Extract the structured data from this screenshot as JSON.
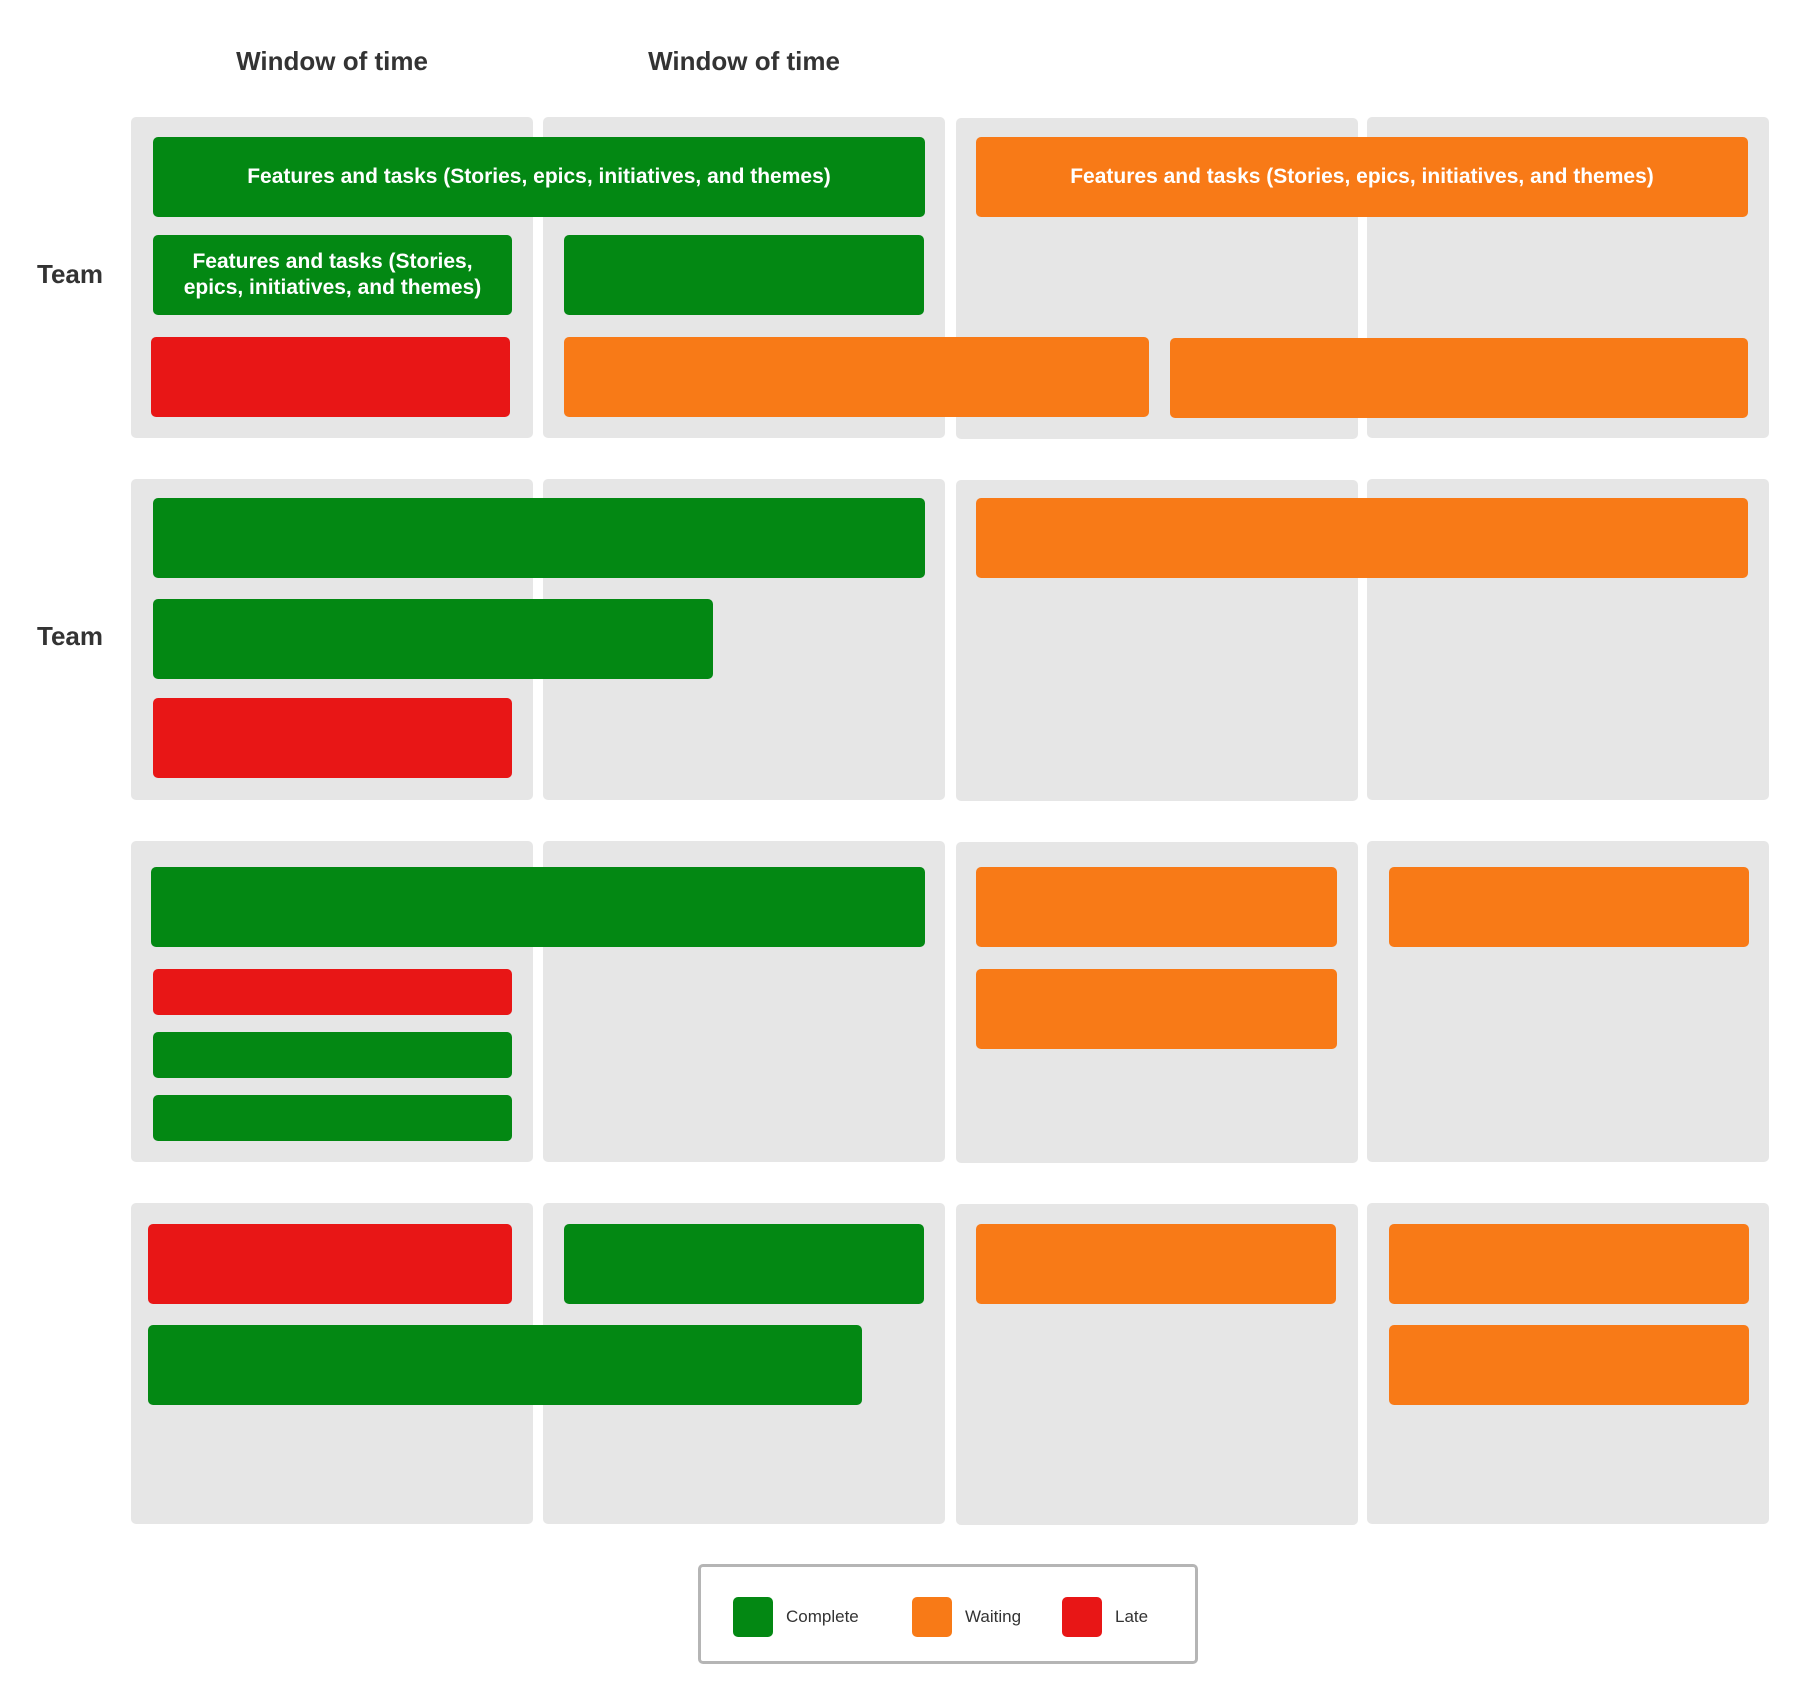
{
  "colors": {
    "complete": "#038813",
    "waiting": "#f87a17",
    "late": "#e81616",
    "cell_background": "#e6e6e6"
  },
  "headers": [
    "Window of time",
    "Window of time"
  ],
  "row_labels": [
    "Team",
    "Team",
    "",
    ""
  ],
  "bar_text": {
    "feature_long": "Features and tasks (Stories, epics, initiatives, and themes)",
    "feature_short": "Features and tasks (Stories, epics, initiatives, and themes)"
  },
  "legend": [
    {
      "status": "complete",
      "label": "Complete"
    },
    {
      "status": "waiting",
      "label": "Waiting"
    },
    {
      "status": "late",
      "label": "Late"
    }
  ]
}
